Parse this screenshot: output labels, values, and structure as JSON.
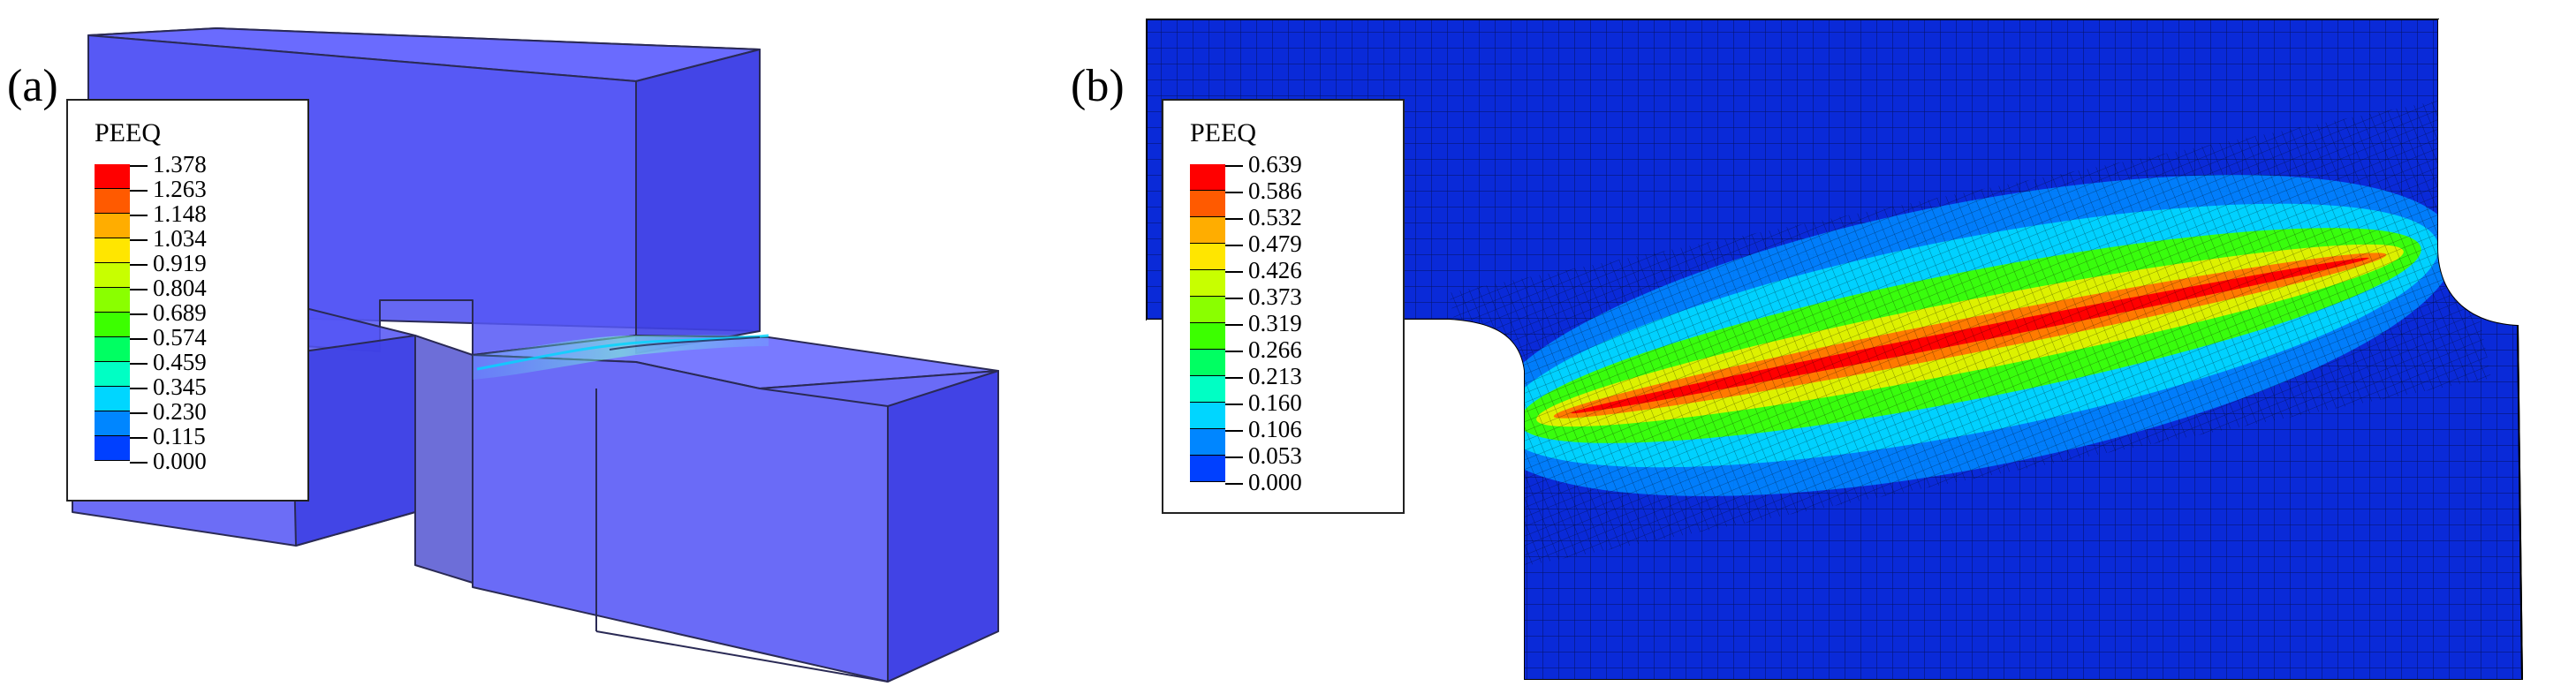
{
  "panel_a": {
    "label": "(a)",
    "legend": {
      "title": "PEEQ",
      "values": [
        "1.378",
        "1.263",
        "1.148",
        "1.034",
        "0.919",
        "0.804",
        "0.689",
        "0.574",
        "0.459",
        "0.345",
        "0.230",
        "0.115",
        "0.000"
      ],
      "colors": [
        "#ff0000",
        "#ff5a00",
        "#ffad00",
        "#ffe600",
        "#c8ff00",
        "#8aff00",
        "#3cff00",
        "#00ff62",
        "#00ffc4",
        "#00d6ff",
        "#0086ff",
        "#0040ff",
        "#0000ff"
      ]
    }
  },
  "panel_b": {
    "label": "(b)",
    "legend": {
      "title": "PEEQ",
      "values": [
        "0.639",
        "0.586",
        "0.532",
        "0.479",
        "0.426",
        "0.373",
        "0.319",
        "0.266",
        "0.213",
        "0.160",
        "0.106",
        "0.053",
        "0.000"
      ],
      "colors": [
        "#ff0000",
        "#ff5a00",
        "#ffad00",
        "#ffe600",
        "#c8ff00",
        "#8aff00",
        "#3cff00",
        "#00ff62",
        "#00ffc4",
        "#00d6ff",
        "#0086ff",
        "#0040ff",
        "#0000ff"
      ]
    }
  }
}
